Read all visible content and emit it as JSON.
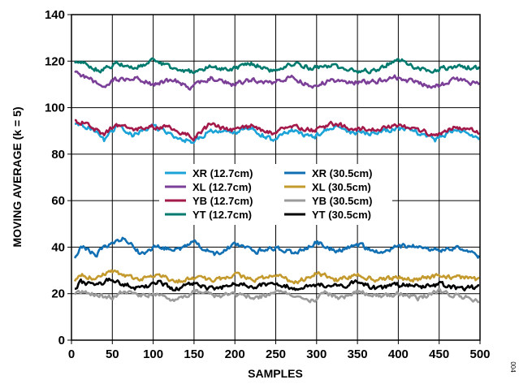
{
  "figure_code": "004",
  "colors": {
    "grid": "#000000",
    "legend_bg": "#ffffff",
    "page_bg": "#ffffff"
  },
  "chart_data": {
    "type": "line",
    "title": "",
    "xlabel": "SAMPLES",
    "ylabel": "MOVING AVERAGE (k = 5)",
    "xlim": [
      0,
      500
    ],
    "ylim": [
      0,
      140
    ],
    "xticks": [
      0,
      50,
      100,
      150,
      200,
      250,
      300,
      350,
      400,
      450,
      500
    ],
    "yticks": [
      0,
      20,
      40,
      60,
      80,
      100,
      120,
      140
    ],
    "xtick_labels": [
      "0",
      "50",
      "100",
      "150",
      "200",
      "250",
      "300",
      "350",
      "400",
      "450",
      "500"
    ],
    "ytick_labels": [
      "0",
      "20",
      "40",
      "60",
      "80",
      "100",
      "120",
      "140"
    ],
    "grid": true,
    "legend_position": "center-left",
    "series": [
      {
        "name": "XR (12.7cm)",
        "color": "#1ba3d8",
        "x": [
          4,
          25,
          40,
          55,
          75,
          100,
          125,
          148,
          170,
          195,
          220,
          245,
          270,
          295,
          320,
          345,
          370,
          395,
          420,
          445,
          470,
          500
        ],
        "y": [
          93,
          91,
          86,
          92,
          88,
          92,
          88,
          85,
          90,
          89,
          91,
          86,
          90,
          87,
          92,
          89,
          89,
          91,
          90,
          86,
          91,
          86
        ]
      },
      {
        "name": "XL (12.7cm)",
        "color": "#7b3f98",
        "x": [
          4,
          20,
          35,
          55,
          75,
          100,
          125,
          145,
          170,
          195,
          220,
          245,
          270,
          295,
          320,
          345,
          370,
          395,
          420,
          445,
          470,
          500
        ],
        "y": [
          115,
          113,
          109,
          112,
          113,
          110,
          112,
          108,
          113,
          110,
          112,
          111,
          113,
          109,
          112,
          111,
          111,
          113,
          111,
          109,
          112,
          110
        ]
      },
      {
        "name": "YB (12.7cm)",
        "color": "#a3194a",
        "x": [
          4,
          20,
          38,
          55,
          75,
          100,
          125,
          150,
          170,
          195,
          220,
          245,
          270,
          295,
          320,
          345,
          370,
          395,
          420,
          445,
          470,
          500
        ],
        "y": [
          94,
          93,
          88,
          93,
          90,
          92,
          91,
          87,
          93,
          90,
          92,
          89,
          92,
          90,
          93,
          91,
          91,
          92,
          91,
          88,
          92,
          89
        ]
      },
      {
        "name": "YT (12.7cm)",
        "color": "#007a6e",
        "x": [
          4,
          20,
          35,
          55,
          75,
          100,
          125,
          150,
          170,
          195,
          220,
          245,
          270,
          295,
          320,
          345,
          370,
          400,
          420,
          445,
          470,
          500
        ],
        "y": [
          120,
          118,
          116,
          119,
          117,
          120,
          117,
          115,
          118,
          116,
          119,
          116,
          119,
          117,
          118,
          116,
          116,
          121,
          117,
          116,
          118,
          117
        ]
      },
      {
        "name": "XR (30.5cm)",
        "color": "#1170b3",
        "x": [
          4,
          12,
          30,
          45,
          65,
          85,
          105,
          125,
          150,
          175,
          200,
          225,
          250,
          275,
          300,
          325,
          350,
          375,
          400,
          425,
          450,
          475,
          500
        ],
        "y": [
          35,
          40,
          37,
          41,
          44,
          37,
          41,
          38,
          42,
          37,
          41,
          38,
          40,
          37,
          42,
          38,
          41,
          38,
          40,
          41,
          38,
          40,
          36
        ]
      },
      {
        "name": "XL (30.5cm)",
        "color": "#c49a2e",
        "x": [
          4,
          12,
          30,
          45,
          65,
          85,
          105,
          125,
          150,
          175,
          200,
          225,
          250,
          275,
          300,
          325,
          350,
          375,
          400,
          425,
          450,
          475,
          500
        ],
        "y": [
          25,
          28,
          26,
          30,
          28,
          26,
          29,
          25,
          27,
          26,
          28,
          26,
          28,
          25,
          29,
          26,
          28,
          26,
          27,
          26,
          28,
          27,
          26
        ]
      },
      {
        "name": "YB (30.5cm)",
        "color": "#9b9b9b",
        "x": [
          4,
          12,
          30,
          45,
          65,
          85,
          105,
          125,
          150,
          175,
          200,
          225,
          250,
          275,
          290,
          310,
          330,
          350,
          375,
          400,
          425,
          450,
          475,
          500
        ],
        "y": [
          19,
          21,
          20,
          18,
          21,
          19,
          20,
          17,
          21,
          19,
          20,
          18,
          21,
          19,
          16,
          20,
          18,
          21,
          19,
          20,
          18,
          21,
          19,
          17
        ]
      },
      {
        "name": "YT (30.5cm)",
        "color": "#000000",
        "x": [
          4,
          12,
          30,
          45,
          65,
          85,
          105,
          125,
          150,
          175,
          200,
          225,
          250,
          275,
          300,
          325,
          350,
          375,
          400,
          425,
          450,
          475,
          500
        ],
        "y": [
          22,
          25,
          23,
          26,
          24,
          22,
          25,
          22,
          24,
          22,
          24,
          23,
          25,
          22,
          24,
          23,
          25,
          22,
          24,
          23,
          24,
          22,
          23
        ]
      }
    ]
  }
}
